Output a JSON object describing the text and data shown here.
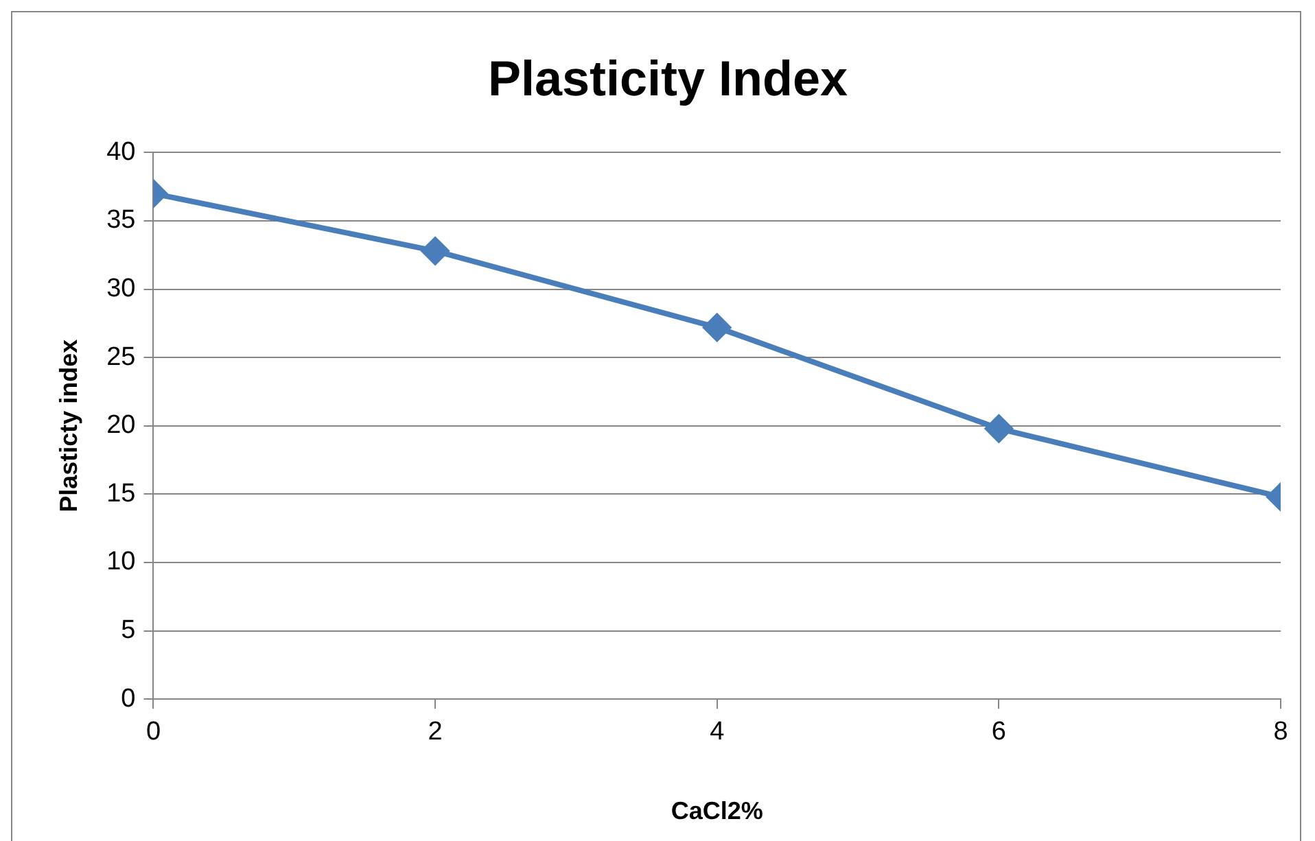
{
  "chart_data": {
    "type": "line",
    "title": "Plasticity Index",
    "xlabel": "CaCl2%",
    "ylabel": "Plasticty index",
    "x": [
      0,
      2,
      4,
      6,
      8
    ],
    "series": [
      {
        "color": "#4a7ebb",
        "values": [
          37,
          32.8,
          27.2,
          19.8,
          14.8
        ]
      }
    ],
    "xlim": [
      0,
      8
    ],
    "xticks": [
      0,
      2,
      4,
      6,
      8
    ],
    "ylim": [
      0,
      40
    ],
    "yticks": [
      0,
      5,
      10,
      15,
      20,
      25,
      30,
      35,
      40
    ],
    "grid": "y",
    "legend": false,
    "marker": "diamond",
    "line_style": "solid"
  }
}
